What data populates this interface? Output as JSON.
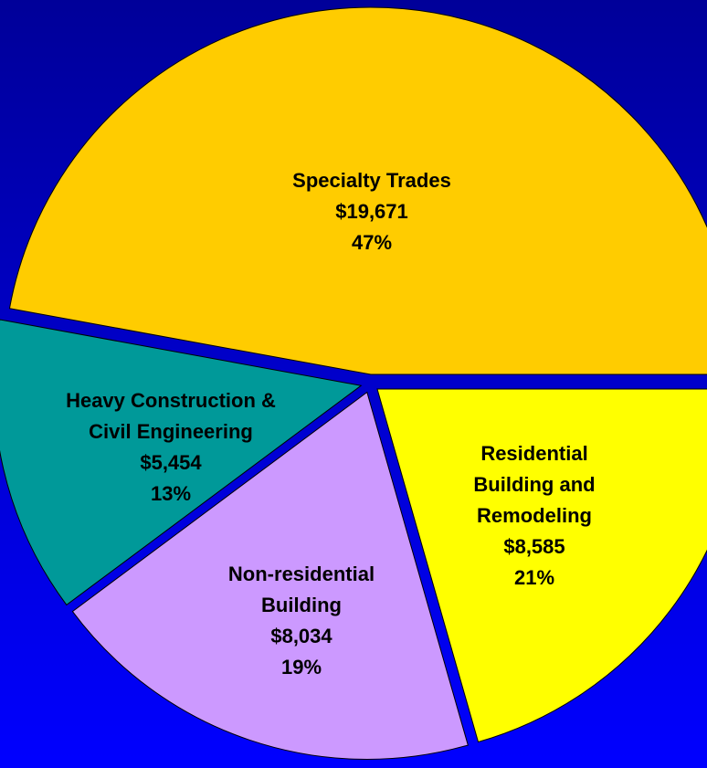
{
  "chart_data": {
    "type": "pie",
    "categories": [
      "Specialty Trades",
      "Heavy Construction & Civil Engineering",
      "Non-residential Building",
      "Residential Building and Remodeling"
    ],
    "values": [
      19671,
      5454,
      8034,
      8585
    ],
    "value_labels": [
      "$19,671",
      "$5,454",
      "$8,034",
      "$8,585"
    ],
    "percentages": [
      47,
      13,
      19,
      21
    ],
    "percentage_labels": [
      "47%",
      "13%",
      "19%",
      "21%"
    ],
    "colors": [
      "#ffcc00",
      "#009999",
      "#cc99ff",
      "#ffff00"
    ]
  }
}
